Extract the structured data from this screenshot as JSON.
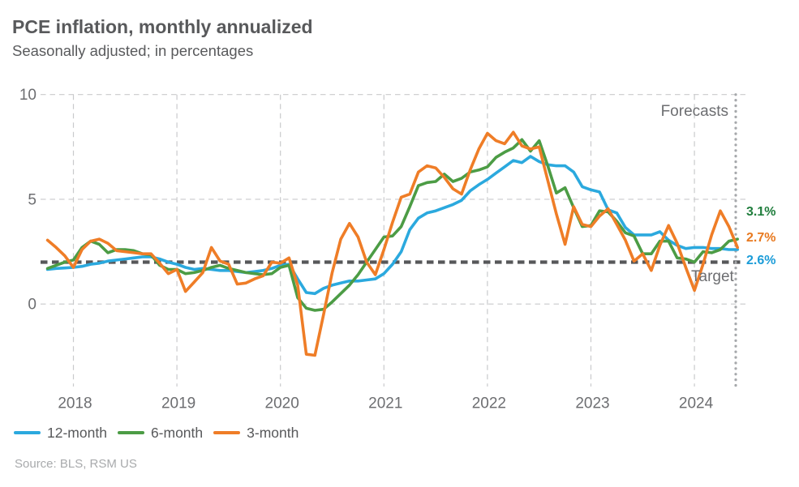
{
  "header": {
    "title": "PCE inflation, monthly annualized",
    "subtitle": "Seasonally adjusted; in percentages"
  },
  "labels": {
    "forecasts": "Forecasts",
    "target": "Target"
  },
  "source": "Source: BLS, RSM US",
  "colors": {
    "line_12_month": "#2ba9de",
    "line_6_month": "#4c9c45",
    "line_3_month": "#ef7d27",
    "target_line": "#57585a",
    "gridline": "#c9cacc",
    "forecast_divider": "#a6a8ab",
    "text_dark": "#58595b",
    "text_gray": "#6d6e71",
    "text_light": "#a8aaac"
  },
  "chart_data": {
    "type": "line",
    "title": "PCE inflation, monthly annualized",
    "subtitle": "Seasonally adjusted; in percentages",
    "x_frequency": "monthly",
    "x_start": "2017-10",
    "x_end": "2024-06",
    "x_tick_labels": [
      "2018",
      "2019",
      "2020",
      "2021",
      "2022",
      "2023",
      "2024"
    ],
    "y_ticks": [
      0,
      5,
      10
    ],
    "ylim": [
      -4,
      10
    ],
    "grid": "dashed",
    "legend_position": "bottom",
    "target_line": {
      "value": 2,
      "label": "Target"
    },
    "forecast": {
      "label": "Forecasts",
      "start": "2024-05"
    },
    "series": [
      {
        "name": "12-month",
        "color": "#2ba9de",
        "end_value_label": "2.6%",
        "values": [
          1.65,
          1.7,
          1.72,
          1.75,
          1.8,
          1.9,
          1.95,
          2.05,
          2.1,
          2.15,
          2.2,
          2.25,
          2.25,
          2.15,
          2.0,
          1.9,
          1.75,
          1.65,
          1.7,
          1.65,
          1.6,
          1.6,
          1.55,
          1.5,
          1.55,
          1.6,
          1.7,
          1.85,
          1.9,
          1.2,
          0.55,
          0.5,
          0.75,
          0.9,
          1.0,
          1.1,
          1.1,
          1.15,
          1.2,
          1.45,
          1.9,
          2.5,
          3.55,
          4.1,
          4.35,
          4.45,
          4.6,
          4.75,
          4.95,
          5.4,
          5.7,
          5.95,
          6.25,
          6.55,
          6.85,
          6.75,
          7.05,
          6.8,
          6.65,
          6.6,
          6.6,
          6.3,
          5.6,
          5.45,
          5.35,
          4.5,
          4.35,
          3.65,
          3.3,
          3.3,
          3.3,
          3.45,
          3.05,
          2.8,
          2.65,
          2.7,
          2.7,
          2.65,
          2.65,
          2.6,
          2.6
        ]
      },
      {
        "name": "6-month",
        "color": "#4c9c45",
        "end_value_label": "3.1%",
        "values": [
          1.7,
          1.85,
          2.0,
          2.1,
          2.7,
          3.0,
          2.85,
          2.45,
          2.6,
          2.6,
          2.55,
          2.4,
          2.35,
          1.85,
          1.65,
          1.65,
          1.45,
          1.5,
          1.6,
          1.75,
          1.85,
          1.7,
          1.6,
          1.5,
          1.45,
          1.4,
          1.45,
          1.75,
          1.85,
          0.3,
          -0.2,
          -0.3,
          -0.25,
          0.1,
          0.5,
          0.9,
          1.4,
          2.0,
          2.6,
          3.2,
          3.25,
          3.7,
          4.65,
          5.65,
          5.8,
          5.85,
          6.2,
          5.85,
          6.0,
          6.3,
          6.4,
          6.55,
          7.0,
          7.25,
          7.45,
          7.85,
          7.3,
          7.8,
          6.6,
          5.3,
          5.55,
          4.6,
          3.7,
          3.75,
          4.45,
          4.4,
          3.95,
          3.4,
          3.25,
          2.4,
          2.4,
          3.0,
          3.0,
          2.2,
          2.15,
          2.0,
          2.5,
          2.45,
          2.6,
          3.0,
          3.1
        ]
      },
      {
        "name": "3-month",
        "color": "#ef7d27",
        "end_value_label": "2.7%",
        "values": [
          3.05,
          2.7,
          2.3,
          1.75,
          2.6,
          3.0,
          3.1,
          2.9,
          2.55,
          2.5,
          2.45,
          2.4,
          2.4,
          1.95,
          1.45,
          1.65,
          0.6,
          1.05,
          1.5,
          2.7,
          2.05,
          1.9,
          0.95,
          1.0,
          1.2,
          1.35,
          2.0,
          1.95,
          2.2,
          0.9,
          -2.4,
          -2.45,
          -0.5,
          1.5,
          3.1,
          3.85,
          3.2,
          2.0,
          1.4,
          2.6,
          3.9,
          5.1,
          5.25,
          6.3,
          6.6,
          6.5,
          6.05,
          5.5,
          5.25,
          6.4,
          7.4,
          8.15,
          7.8,
          7.65,
          8.2,
          7.55,
          7.4,
          7.5,
          5.9,
          4.3,
          2.85,
          4.65,
          3.8,
          3.7,
          4.2,
          4.55,
          3.8,
          3.05,
          2.05,
          2.4,
          1.6,
          2.8,
          3.75,
          2.9,
          1.75,
          0.65,
          1.9,
          3.3,
          4.45,
          3.7,
          2.7
        ]
      }
    ],
    "end_annotations": [
      {
        "text": "3.1%",
        "color": "#1f7d3c",
        "series": "6-month"
      },
      {
        "text": "2.7%",
        "color": "#e8791f",
        "series": "3-month"
      },
      {
        "text": "2.6%",
        "color": "#1b9cd8",
        "series": "12-month"
      }
    ]
  }
}
